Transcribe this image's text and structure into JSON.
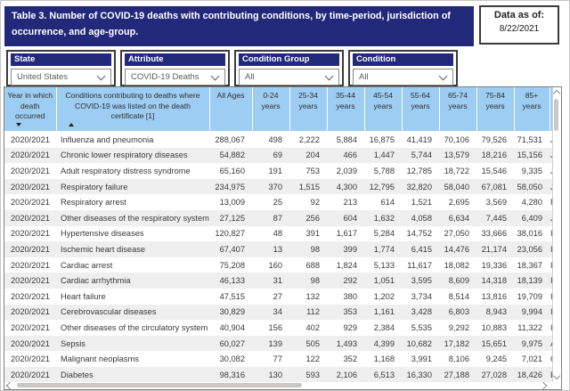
{
  "title": "Table 3. Number of COVID-19 deaths with contributing conditions, by time-period, jurisdiction of occurrence, and age-group.",
  "data_as_of": {
    "label": "Data as of:",
    "date": "8/22/2021"
  },
  "filters": [
    {
      "label": "State",
      "value": "United States"
    },
    {
      "label": "Attribute",
      "value": "COVID-19 Deaths"
    },
    {
      "label": "Condition Group",
      "value": "All"
    },
    {
      "label": "Condition",
      "value": "All"
    }
  ],
  "colors": {
    "navy": "#23297A",
    "header_blue": "#9DCDF2",
    "alt_row": "#EFEFEF"
  },
  "table": {
    "columns": [
      "Year in which death occurred",
      "Conditions contributing to deaths where COVID-19 was listed on the death certificate [1]",
      "All Ages",
      "0-24 years",
      "25-34 years",
      "35-44 years",
      "45-54 years",
      "55-64 years",
      "65-74 years",
      "75-84 years",
      "85+ years"
    ],
    "sort": {
      "year": "desc",
      "conditions": "asc"
    },
    "rows": [
      {
        "year": "2020/2021",
        "condition": "Influenza and pneumonia",
        "values": [
          "288,067",
          "498",
          "2,222",
          "5,884",
          "16,875",
          "41,419",
          "70,106",
          "79,526",
          "71,531"
        ],
        "code_fragment": "J"
      },
      {
        "year": "2020/2021",
        "condition": "Chronic lower respiratory diseases",
        "values": [
          "54,882",
          "69",
          "204",
          "466",
          "1,447",
          "5,744",
          "13,579",
          "18,216",
          "15,156"
        ],
        "code_fragment": "J"
      },
      {
        "year": "2020/2021",
        "condition": "Adult respiratory distress syndrome",
        "values": [
          "65,160",
          "191",
          "753",
          "2,039",
          "5,788",
          "12,785",
          "18,722",
          "15,546",
          "9,335"
        ],
        "code_fragment": "J"
      },
      {
        "year": "2020/2021",
        "condition": "Respiratory failure",
        "values": [
          "234,975",
          "370",
          "1,515",
          "4,300",
          "12,795",
          "32,820",
          "58,040",
          "67,081",
          "58,050"
        ],
        "code_fragment": "J"
      },
      {
        "year": "2020/2021",
        "condition": "Respiratory arrest",
        "values": [
          "13,009",
          "25",
          "92",
          "213",
          "614",
          "1,521",
          "2,695",
          "3,569",
          "4,280"
        ],
        "code_fragment": "R"
      },
      {
        "year": "2020/2021",
        "condition": "Other diseases of the respiratory system",
        "values": [
          "27,125",
          "87",
          "256",
          "604",
          "1,632",
          "4,058",
          "6,634",
          "7,445",
          "6,409"
        ],
        "code_fragment": "J"
      },
      {
        "year": "2020/2021",
        "condition": "Hypertensive diseases",
        "values": [
          "120,827",
          "48",
          "391",
          "1,617",
          "5,284",
          "14,752",
          "27,050",
          "33,666",
          "38,016"
        ],
        "code_fragment": "I"
      },
      {
        "year": "2020/2021",
        "condition": "Ischemic heart disease",
        "values": [
          "67,407",
          "13",
          "98",
          "399",
          "1,774",
          "6,415",
          "14,476",
          "21,174",
          "23,056"
        ],
        "code_fragment": "I"
      },
      {
        "year": "2020/2021",
        "condition": "Cardiac arrest",
        "values": [
          "75,208",
          "160",
          "688",
          "1,824",
          "5,133",
          "11,617",
          "18,082",
          "19,336",
          "18,367"
        ],
        "code_fragment": "I"
      },
      {
        "year": "2020/2021",
        "condition": "Cardiac arrhythmia",
        "values": [
          "46,133",
          "31",
          "98",
          "292",
          "1,051",
          "3,595",
          "8,609",
          "14,318",
          "18,139"
        ],
        "code_fragment": "I"
      },
      {
        "year": "2020/2021",
        "condition": "Heart failure",
        "values": [
          "47,515",
          "27",
          "132",
          "380",
          "1,202",
          "3,734",
          "8,514",
          "13,816",
          "19,709"
        ],
        "code_fragment": "I"
      },
      {
        "year": "2020/2021",
        "condition": "Cerebrovascular diseases",
        "values": [
          "30,829",
          "34",
          "112",
          "353",
          "1,161",
          "3,428",
          "6,803",
          "8,943",
          "9,994"
        ],
        "code_fragment": "I"
      },
      {
        "year": "2020/2021",
        "condition": "Other diseases of the circulatory system",
        "values": [
          "40,904",
          "156",
          "402",
          "929",
          "2,384",
          "5,535",
          "9,292",
          "10,883",
          "11,322"
        ],
        "code_fragment": "I"
      },
      {
        "year": "2020/2021",
        "condition": "Sepsis",
        "values": [
          "60,027",
          "139",
          "505",
          "1,493",
          "4,399",
          "10,682",
          "17,182",
          "15,651",
          "9,975"
        ],
        "code_fragment": "A"
      },
      {
        "year": "2020/2021",
        "condition": "Malignant neoplasms",
        "values": [
          "30,082",
          "77",
          "122",
          "352",
          "1,168",
          "3,991",
          "8,106",
          "9,245",
          "7,021"
        ],
        "code_fragment": "C"
      },
      {
        "year": "2020/2021",
        "condition": "Diabetes",
        "values": [
          "98,316",
          "130",
          "593",
          "2,106",
          "6,513",
          "16,330",
          "27,188",
          "27,028",
          "18,426"
        ],
        "code_fragment": "E"
      }
    ]
  }
}
